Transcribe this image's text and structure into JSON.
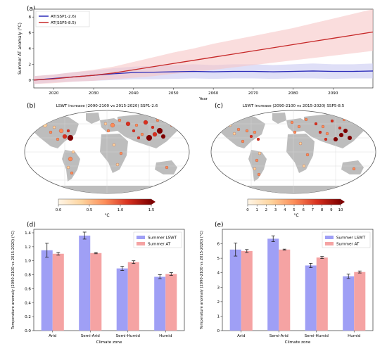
{
  "panels": {
    "a": "(a)",
    "b": "(b)",
    "c": "(c)",
    "d": "(d)",
    "e": "(e)"
  },
  "chart_data": [
    {
      "id": "a",
      "type": "line",
      "title": "",
      "xlabel": "Year",
      "ylabel": "Summer AT anomaly (°C)",
      "xlim": [
        2015,
        2100
      ],
      "ylim": [
        -1,
        9
      ],
      "xticks": [
        2020,
        2030,
        2040,
        2050,
        2060,
        2070,
        2080,
        2090
      ],
      "yticks": [
        0,
        2,
        4,
        6,
        8
      ],
      "legend_position": "top-left",
      "series": [
        {
          "name": "AT(SSP1-2.6)",
          "color": "#2b2bb8",
          "band_color": "#c9c9f2",
          "x": [
            2015,
            2020,
            2025,
            2030,
            2035,
            2040,
            2045,
            2050,
            2055,
            2060,
            2065,
            2070,
            2075,
            2080,
            2085,
            2090,
            2095,
            2100
          ],
          "values": [
            0.0,
            0.2,
            0.4,
            0.6,
            0.8,
            0.95,
            1.0,
            1.05,
            1.1,
            1.05,
            1.1,
            1.1,
            1.05,
            1.1,
            1.15,
            1.1,
            1.1,
            1.15
          ],
          "lower": [
            -0.5,
            -0.3,
            -0.2,
            -0.1,
            0.0,
            0.1,
            0.1,
            0.15,
            0.2,
            0.15,
            0.2,
            0.2,
            0.15,
            0.2,
            0.2,
            0.15,
            0.2,
            0.2
          ],
          "upper": [
            0.5,
            0.7,
            1.0,
            1.2,
            1.5,
            1.7,
            1.8,
            1.9,
            2.0,
            1.9,
            2.0,
            2.0,
            1.9,
            2.0,
            2.1,
            2.0,
            2.0,
            2.1
          ]
        },
        {
          "name": "AT(SSP5-8.5)",
          "color": "#c62828",
          "band_color": "#f6c6c6",
          "x": [
            2015,
            2020,
            2025,
            2030,
            2035,
            2040,
            2045,
            2050,
            2055,
            2060,
            2065,
            2070,
            2075,
            2080,
            2085,
            2090,
            2095,
            2100
          ],
          "values": [
            0.0,
            0.15,
            0.4,
            0.6,
            0.9,
            1.3,
            1.7,
            2.1,
            2.5,
            2.9,
            3.3,
            3.7,
            4.1,
            4.5,
            4.9,
            5.3,
            5.7,
            6.1
          ],
          "lower": [
            -0.5,
            -0.4,
            -0.2,
            -0.1,
            0.1,
            0.3,
            0.5,
            0.8,
            1.0,
            1.3,
            1.6,
            1.9,
            2.2,
            2.5,
            2.8,
            3.1,
            3.4,
            3.7
          ],
          "upper": [
            0.5,
            0.7,
            1.0,
            1.3,
            1.7,
            2.3,
            2.9,
            3.5,
            4.0,
            4.6,
            5.1,
            5.6,
            6.1,
            6.6,
            7.2,
            7.8,
            8.4,
            9.0
          ]
        }
      ]
    },
    {
      "id": "d",
      "type": "bar",
      "title": "",
      "xlabel": "Climate zone",
      "ylabel": "Temperature anomaly (2090-2100 vs 2015-2020) (°C)",
      "ylim": [
        0.0,
        1.45
      ],
      "yticks": [
        "0.0",
        "0.2",
        "0.4",
        "0.6",
        "0.8",
        "1.0",
        "1.2",
        "1.4"
      ],
      "categories": [
        "Arid",
        "Semi-Arid",
        "Semi-Humid",
        "Humid"
      ],
      "legend_position": "top-right",
      "series": [
        {
          "name": "Summer LSWT",
          "color": "#9f9ff5",
          "values": [
            1.15,
            1.36,
            0.89,
            0.77
          ],
          "err": [
            0.1,
            0.05,
            0.03,
            0.03
          ]
        },
        {
          "name": "Summer AT",
          "color": "#f5a3a3",
          "values": [
            1.1,
            1.11,
            0.98,
            0.81
          ],
          "err": [
            0.02,
            0.01,
            0.02,
            0.02
          ]
        }
      ]
    },
    {
      "id": "e",
      "type": "bar",
      "title": "",
      "xlabel": "Climate zone",
      "ylabel": "Temperature anomaly (2090-2100 vs 2015-2020) (°C)",
      "ylim": [
        0,
        7
      ],
      "yticks": [
        "0",
        "1",
        "2",
        "3",
        "4",
        "5",
        "6"
      ],
      "categories": [
        "Arid",
        "Semi-Arid",
        "Semi-Humid",
        "Humid"
      ],
      "legend_position": "top-right",
      "series": [
        {
          "name": "Summer LSWT",
          "color": "#9f9ff5",
          "values": [
            5.6,
            6.35,
            4.5,
            3.75
          ],
          "err": [
            0.45,
            0.2,
            0.15,
            0.15
          ]
        },
        {
          "name": "Summer AT",
          "color": "#f5a3a3",
          "values": [
            5.5,
            5.6,
            5.05,
            4.05
          ],
          "err": [
            0.1,
            0.03,
            0.07,
            0.07
          ]
        }
      ]
    }
  ],
  "maps": [
    {
      "id": "b",
      "title": "LSWT increase (2090-2100 vs 2015-2020) SSP1-2.6",
      "colorbar_ticks": [
        "0.0",
        "0.5",
        "1.0",
        "1.5"
      ],
      "colorbar_label": "°C",
      "colors": [
        "#fff5e6",
        "#fdd49e",
        "#fc8d59",
        "#d7301f",
        "#7f0000"
      ]
    },
    {
      "id": "c",
      "title": "LSWT increase (2090-2100 vs 2015-2020) SSP5-8.5",
      "colorbar_ticks": [
        "0",
        "1",
        "2",
        "3",
        "4",
        "5",
        "6",
        "7",
        "8",
        "9",
        "10"
      ],
      "colorbar_label": "°C",
      "colors": [
        "#fff5e6",
        "#fdd49e",
        "#fc8d59",
        "#d7301f",
        "#7f0000"
      ]
    }
  ]
}
